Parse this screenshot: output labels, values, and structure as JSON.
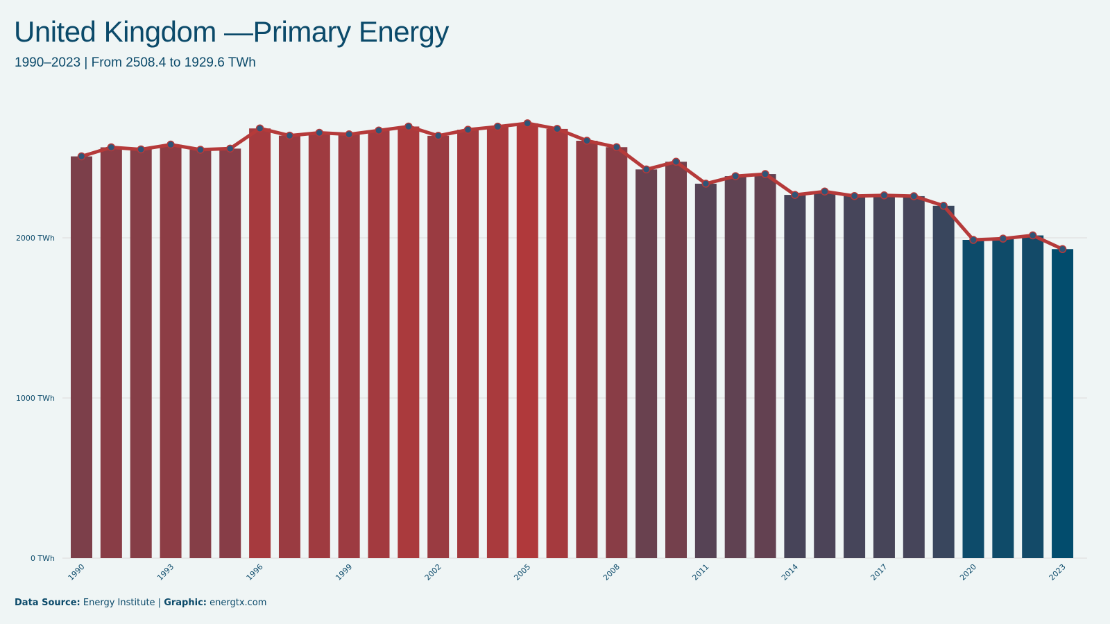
{
  "header": {
    "title": "United Kingdom —Primary Energy",
    "subtitle": "1990–2023 | From 2508.4 to 1929.6  TWh"
  },
  "footer": {
    "source_label": "Data Source:",
    "source_value": "Energy Institute |",
    "graphic_label": "Graphic:",
    "graphic_value": "energtx.com"
  },
  "colors": {
    "background": "#eff5f5",
    "text": "#0b4a6a",
    "line": "#b53a3a",
    "marker_fill": "#2f5577",
    "bar_high": "#b0393b",
    "bar_low": "#024c6d",
    "grid": "#dcdcdc"
  },
  "chart_data": {
    "type": "bar",
    "unit": "TWh",
    "categories": [
      "1990",
      "1991",
      "1992",
      "1993",
      "1994",
      "1995",
      "1996",
      "1997",
      "1998",
      "1999",
      "2000",
      "2001",
      "2002",
      "2003",
      "2004",
      "2005",
      "2006",
      "2007",
      "2008",
      "2009",
      "2010",
      "2011",
      "2012",
      "2013",
      "2014",
      "2015",
      "2016",
      "2017",
      "2018",
      "2019",
      "2020",
      "2021",
      "2022",
      "2023"
    ],
    "values": [
      2508.4,
      2565,
      2552,
      2582,
      2550,
      2557,
      2683,
      2638,
      2656,
      2646,
      2670,
      2695,
      2637,
      2675,
      2694,
      2715,
      2680,
      2606,
      2566,
      2427,
      2475,
      2338,
      2385,
      2398,
      2268,
      2289,
      2261,
      2265,
      2260,
      2200,
      1987,
      1995,
      2015,
      1929.6
    ],
    "series": [
      {
        "type": "bar",
        "values_ref": "values"
      },
      {
        "type": "line",
        "values_ref": "values"
      }
    ],
    "x_tick_labels": [
      "1990",
      "1993",
      "1996",
      "1999",
      "2002",
      "2005",
      "2008",
      "2011",
      "2014",
      "2017",
      "2020",
      "2023"
    ],
    "y_ticks": [
      0,
      1000,
      2000
    ],
    "y_tick_labels": [
      "0 TWh",
      "1000 TWh",
      "2000 TWh"
    ],
    "ylim": [
      0,
      2750
    ],
    "grid": "horizontal",
    "legend": "none",
    "xlabel": "",
    "ylabel": ""
  }
}
